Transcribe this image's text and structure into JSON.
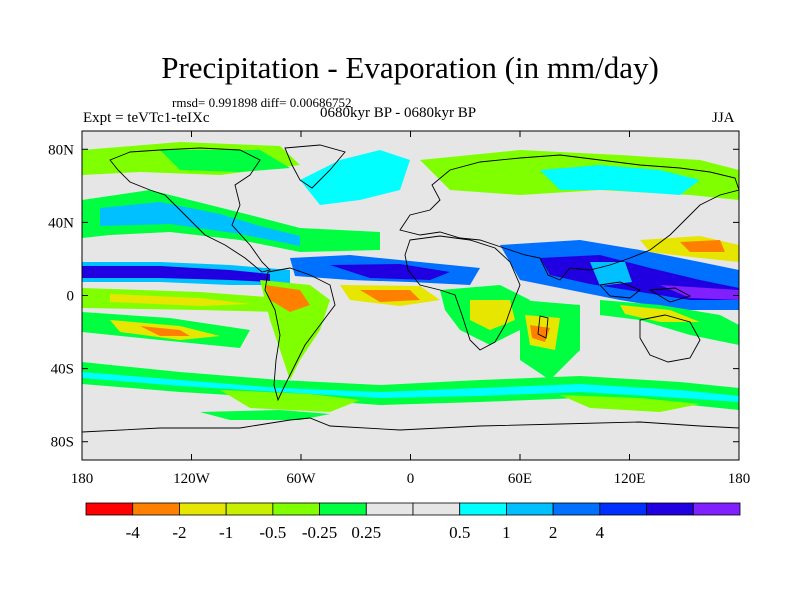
{
  "title": "Precipitation - Evaporation (in mm/day)",
  "stats": "rmsd= 0.991898 diff= 0.00686752",
  "experiment": "Expt = teVTc1-teIXc",
  "period": "0680kyr BP - 0680kyr BP",
  "season": "JJA",
  "axes": {
    "lat_ticks": [
      {
        "label": "80N",
        "value": 80
      },
      {
        "label": "40N",
        "value": 40
      },
      {
        "label": "0",
        "value": 0
      },
      {
        "label": "40S",
        "value": -40
      },
      {
        "label": "80S",
        "value": -80
      }
    ],
    "lon_ticks": [
      {
        "label": "180",
        "value": -180
      },
      {
        "label": "120W",
        "value": -120
      },
      {
        "label": "60W",
        "value": -60
      },
      {
        "label": "0",
        "value": 0
      },
      {
        "label": "60E",
        "value": 60
      },
      {
        "label": "120E",
        "value": 120
      },
      {
        "label": "180",
        "value": 180
      }
    ],
    "lat_range": [
      -90,
      90
    ],
    "lon_range": [
      -180,
      180
    ]
  },
  "colorbar": {
    "colors": [
      "#ff0000",
      "#ff8000",
      "#e6e600",
      "#c8f000",
      "#80ff00",
      "#00ff40",
      "#e6e6e6",
      "#e6e6e6",
      "#00ffff",
      "#00c0ff",
      "#0070ff",
      "#0030ff",
      "#2000e0",
      "#8020ff"
    ],
    "labels": [
      "-4",
      "-2",
      "-1",
      "-0.5",
      "-0.25",
      "0.25",
      "0.5",
      "1",
      "2",
      "4"
    ]
  },
  "colors": {
    "background": "#e6e6e6",
    "strong_positive": "#2000e0",
    "positive": "#0070ff",
    "weak_positive": "#00c0ff",
    "slight_positive": "#00ffff",
    "slight_negative": "#00ff40",
    "weak_negative": "#80ff00",
    "negative": "#e6e600",
    "strong_negative": "#ff8000",
    "extreme_negative": "#ff0000",
    "coastline": "#000000"
  }
}
